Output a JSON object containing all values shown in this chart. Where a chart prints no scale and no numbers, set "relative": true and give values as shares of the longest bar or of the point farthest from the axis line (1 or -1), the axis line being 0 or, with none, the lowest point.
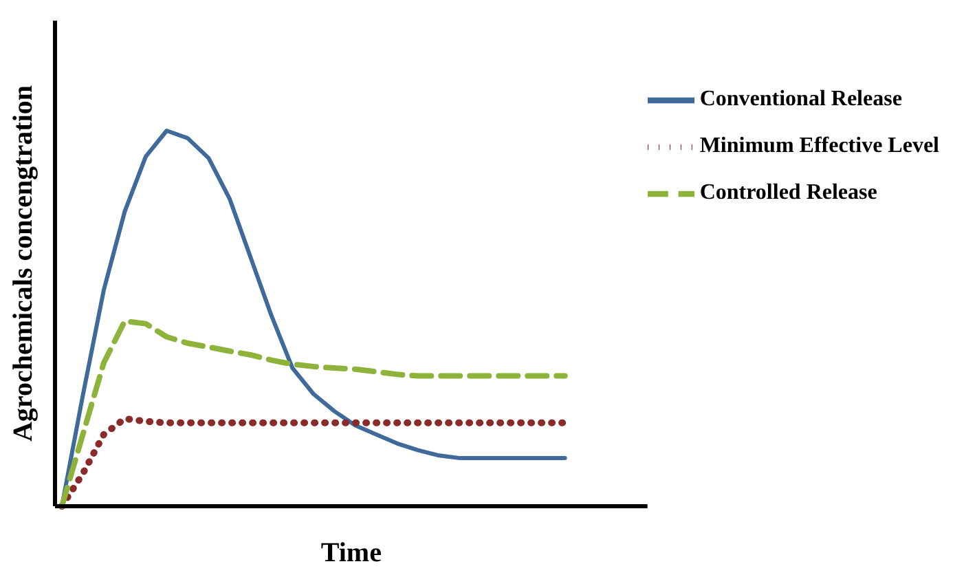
{
  "chart_data": {
    "type": "line",
    "relative": true,
    "xlabel": "Time",
    "ylabel": "Agrochemicals concengtration",
    "legend": "top right",
    "grid": false,
    "marker": "none",
    "categories": [
      null,
      null,
      null,
      null,
      null,
      null,
      null,
      null,
      null,
      null,
      null,
      null,
      null,
      null,
      null,
      null,
      null,
      null,
      null,
      null,
      null,
      null,
      null,
      null,
      null
    ],
    "series": [
      {
        "name": "Conventional Release",
        "color": "#3f6a9a",
        "line_style": "solid",
        "values": [
          0,
          0.295,
          0.576,
          0.785,
          0.931,
          1,
          0.98,
          0.927,
          0.819,
          0.663,
          0.507,
          0.368,
          0.299,
          0.253,
          0.215,
          0.191,
          0.167,
          0.149,
          0.135,
          0.128,
          0.128,
          0.128,
          0.128,
          0.128,
          0.128
        ]
      },
      {
        "name": "Minimum Effective Level",
        "color": "#8b2a2a",
        "line_style": "dotted",
        "values": [
          0,
          0.087,
          0.191,
          0.233,
          0.226,
          0.222,
          0.222,
          0.222,
          0.222,
          0.222,
          0.222,
          0.222,
          0.222,
          0.222,
          0.222,
          0.222,
          0.222,
          0.222,
          0.222,
          0.222,
          0.222,
          0.222,
          0.222,
          0.222,
          0.222
        ]
      },
      {
        "name": "Controlled Release",
        "color": "#8db33a",
        "line_style": "dashed",
        "values": [
          0,
          0.191,
          0.382,
          0.493,
          0.486,
          0.451,
          0.434,
          0.424,
          0.413,
          0.403,
          0.389,
          0.378,
          0.372,
          0.368,
          0.365,
          0.358,
          0.351,
          0.347,
          0.347,
          0.347,
          0.347,
          0.347,
          0.347,
          0.347,
          0.347
        ]
      }
    ]
  }
}
